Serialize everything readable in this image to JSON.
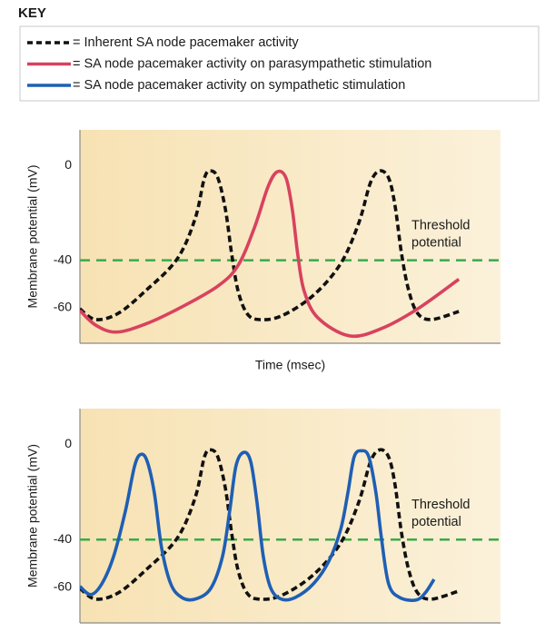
{
  "key": {
    "title": "KEY",
    "entries": [
      {
        "label": "= Inherent SA node pacemaker activity",
        "color": "#111111",
        "dashed": true
      },
      {
        "label": "= SA node pacemaker activity on parasympathetic stimulation",
        "color": "#d8425f",
        "dashed": false
      },
      {
        "label": "= SA node pacemaker activity on sympathetic stimulation",
        "color": "#1f5fb4",
        "dashed": false
      }
    ]
  },
  "chart_data": [
    {
      "type": "line",
      "y_label": "Membrane potential (mV)",
      "x_label": "Time (msec)",
      "xlim": [
        0,
        100
      ],
      "ylim": [
        -75,
        15
      ],
      "yticks": [
        0,
        -40,
        -60
      ],
      "threshold": -40,
      "threshold_color": "#3aaa4a",
      "threshold_label": [
        "Threshold",
        "potential"
      ],
      "series": [
        {
          "color": "#111111",
          "dashed": true,
          "x": [
            0,
            3.7,
            9.1,
            15.6,
            23.1,
            27.4,
            29.6,
            31.1,
            32.8,
            34.6,
            36.1,
            37.6,
            39.7,
            42.5,
            47.9,
            55.5,
            62,
            66.3,
            69.1,
            71.3,
            73.4,
            74.9,
            76.5,
            78.2,
            80.3,
            83.6,
            90.1
          ],
          "values": [
            -60.5,
            -65,
            -62.4,
            -52.9,
            -39.5,
            -22.4,
            -5.3,
            -2.3,
            -5.3,
            -18.6,
            -37.6,
            -52.9,
            -62.4,
            -65,
            -63.5,
            -54.8,
            -41.4,
            -24.3,
            -7.2,
            -2.3,
            -5.3,
            -16.7,
            -37.6,
            -52.9,
            -62.4,
            -65,
            -61.6
          ]
        },
        {
          "color": "#d8425f",
          "dashed": false,
          "x": [
            0,
            3.7,
            8.6,
            15.6,
            24.2,
            32.8,
            37.6,
            41.5,
            44.7,
            46.9,
            49,
            50.5,
            51.8,
            53.3,
            56.6,
            64.1,
            71.7,
            80.3,
            90.1
          ],
          "values": [
            -61.2,
            -67.3,
            -70.3,
            -66.9,
            -59.7,
            -50.9,
            -42.2,
            -26.2,
            -9.1,
            -2.7,
            -5.3,
            -18.6,
            -37.6,
            -52.9,
            -64.3,
            -71.9,
            -68.8,
            -60.5,
            -48
          ]
        }
      ]
    },
    {
      "type": "line",
      "y_label": "Membrane potential (mV)",
      "xlim": [
        0,
        100
      ],
      "ylim": [
        -75,
        15
      ],
      "yticks": [
        0,
        -40,
        -60
      ],
      "threshold": -40,
      "threshold_color": "#3aaa4a",
      "threshold_label": [
        "Threshold",
        "potential"
      ],
      "series": [
        {
          "color": "#111111",
          "dashed": true,
          "x": [
            0,
            3.7,
            9.1,
            15.6,
            23.1,
            27.4,
            29.6,
            31.1,
            32.8,
            34.6,
            36.1,
            37.6,
            39.7,
            42.5,
            47.9,
            55.5,
            62,
            66.3,
            69.1,
            71.3,
            73.4,
            74.9,
            76.5,
            78.2,
            80.3,
            83.6,
            90.1
          ],
          "values": [
            -60.5,
            -65,
            -62.4,
            -52.9,
            -39.5,
            -22.4,
            -5.3,
            -2.3,
            -5.3,
            -18.6,
            -37.6,
            -52.9,
            -62.4,
            -65,
            -63.5,
            -54.8,
            -41.4,
            -24.3,
            -7.2,
            -2.3,
            -5.3,
            -16.7,
            -37.6,
            -52.9,
            -62.4,
            -65,
            -61.6
          ]
        },
        {
          "color": "#1f5fb4",
          "dashed": false,
          "x": [
            0,
            2.6,
            5.2,
            8,
            10.8,
            13,
            14.5,
            16,
            17.7,
            19.4,
            21.6,
            24.2,
            27.4,
            31.1,
            33.9,
            35.6,
            37.1,
            38.9,
            40.6,
            42.1,
            43.6,
            45.4,
            47.9,
            51.2,
            55.5,
            59.2,
            62,
            63.7,
            65.2,
            67,
            68.7,
            70.4,
            71.7,
            73.4,
            76,
            79.9,
            82.1,
            84.2
          ],
          "values": [
            -59.7,
            -63.1,
            -58.6,
            -47.1,
            -28.1,
            -9.1,
            -4.2,
            -7.2,
            -20.5,
            -43.3,
            -58.6,
            -64.3,
            -65,
            -60.5,
            -47.1,
            -28.1,
            -9.1,
            -3.4,
            -7.2,
            -24.3,
            -47.1,
            -60.5,
            -65,
            -64.3,
            -58.6,
            -49,
            -35.7,
            -20.5,
            -5.3,
            -2.7,
            -5.3,
            -20.5,
            -39.5,
            -58.6,
            -64.3,
            -65.4,
            -62.4,
            -56.7
          ]
        }
      ]
    }
  ]
}
